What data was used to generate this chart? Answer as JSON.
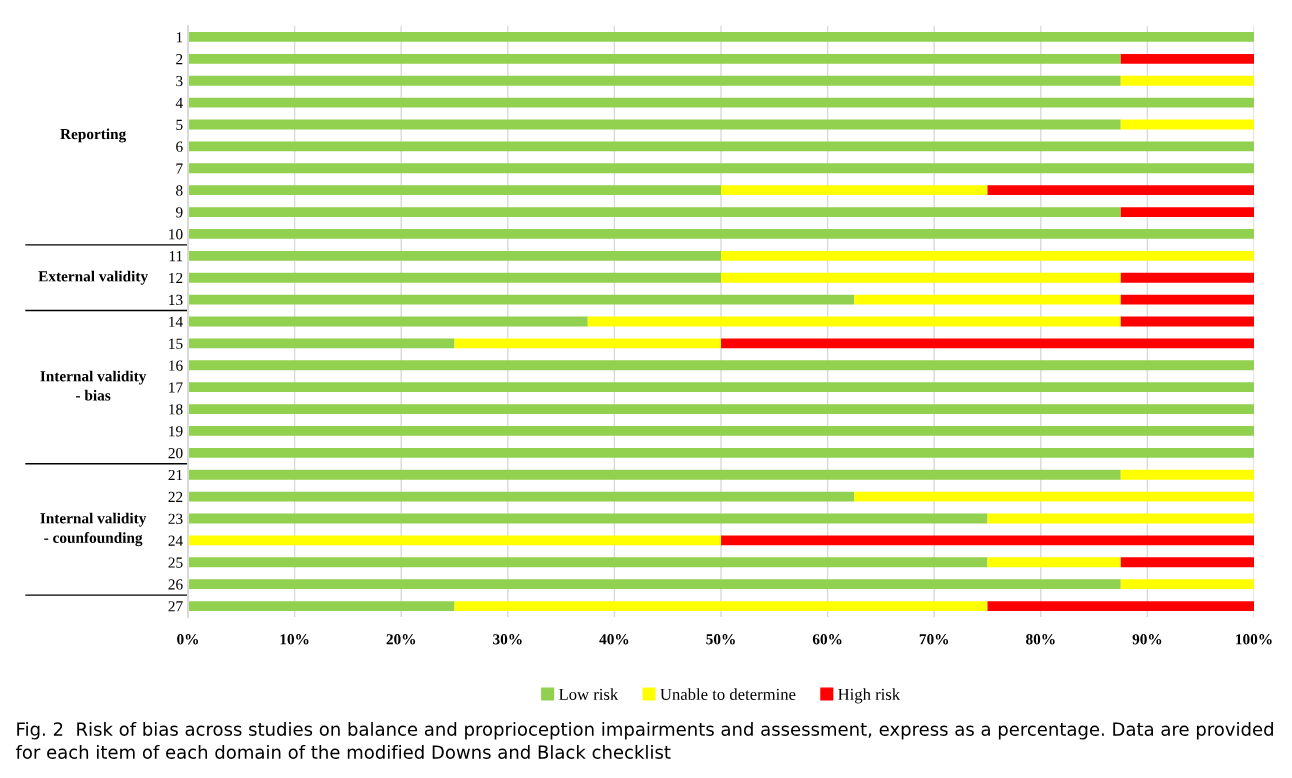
{
  "chart_data": {
    "type": "bar",
    "orientation": "horizontal",
    "stacked": true,
    "categories": [
      "1",
      "2",
      "3",
      "4",
      "5",
      "6",
      "7",
      "8",
      "9",
      "10",
      "11",
      "12",
      "13",
      "14",
      "15",
      "16",
      "17",
      "18",
      "19",
      "20",
      "21",
      "22",
      "23",
      "24",
      "25",
      "26",
      "27"
    ],
    "series": [
      {
        "name": "Low risk",
        "color": "#92d050",
        "values": [
          100,
          87.5,
          87.5,
          100,
          87.5,
          100,
          100,
          50,
          87.5,
          100,
          50,
          50,
          62.5,
          37.5,
          25,
          100,
          100,
          100,
          100,
          100,
          87.5,
          62.5,
          75,
          0,
          75,
          87.5,
          25
        ]
      },
      {
        "name": "Unable to determine",
        "color": "#ffff00",
        "values": [
          0,
          0,
          12.5,
          0,
          12.5,
          0,
          0,
          25,
          0,
          0,
          50,
          37.5,
          25,
          50,
          25,
          0,
          0,
          0,
          0,
          0,
          12.5,
          37.5,
          25,
          50,
          12.5,
          12.5,
          50
        ]
      },
      {
        "name": "High risk",
        "color": "#ff0000",
        "values": [
          0,
          12.5,
          0,
          0,
          0,
          0,
          0,
          25,
          12.5,
          0,
          0,
          12.5,
          12.5,
          12.5,
          50,
          0,
          0,
          0,
          0,
          0,
          0,
          0,
          0,
          50,
          12.5,
          0,
          25
        ]
      }
    ],
    "xlim": [
      0,
      100
    ],
    "xticks": [
      {
        "value": 0,
        "label": "0%"
      },
      {
        "value": 10,
        "label": "10%"
      },
      {
        "value": 20,
        "label": "20%"
      },
      {
        "value": 30,
        "label": "30%"
      },
      {
        "value": 40,
        "label": "40%"
      },
      {
        "value": 50,
        "label": "50%"
      },
      {
        "value": 60,
        "label": "60%"
      },
      {
        "value": 70,
        "label": "70%"
      },
      {
        "value": 80,
        "label": "80%"
      },
      {
        "value": 90,
        "label": "90%"
      },
      {
        "value": 100,
        "label": "100%"
      }
    ],
    "grid": "x",
    "legend": "bottom",
    "annotations": [
      "Reporting",
      "External validity",
      "Internal validity\n- bias",
      "Internal validity\n- counfounding",
      "Fig. 2  Risk of bias across studies on balance and proprioception impairments and assessment, express as a percentage. Data are provided for each item of each domain of the modified Downs and Black checklist"
    ]
  }
}
